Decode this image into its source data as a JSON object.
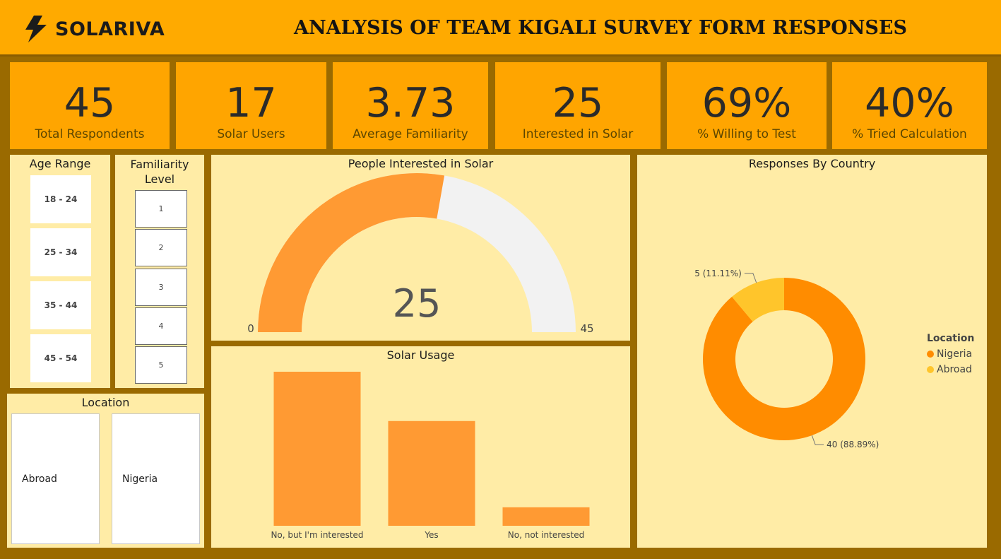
{
  "header": {
    "brand": "SOLARIVA",
    "title": "ANALYSIS OF TEAM KIGALI SURVEY FORM RESPONSES"
  },
  "kpis": [
    {
      "value": "45",
      "label": "Total Respondents"
    },
    {
      "value": "17",
      "label": "Solar Users"
    },
    {
      "value": "3.73",
      "label": "Average Familiarity"
    },
    {
      "value": "25",
      "label": "Interested in Solar"
    },
    {
      "value": "69%",
      "label": "% Willing to Test"
    },
    {
      "value": "40%",
      "label": "% Tried Calculation"
    }
  ],
  "age_slicer": {
    "title": "Age Range",
    "items": [
      "18 - 24",
      "25 - 34",
      "35 - 44",
      "45 - 54"
    ]
  },
  "familiarity_slicer": {
    "title": "Familiarity Level",
    "items": [
      "1",
      "2",
      "3",
      "4",
      "5"
    ]
  },
  "location_slicer": {
    "title": "Location",
    "items": [
      "Abroad",
      "Nigeria"
    ]
  },
  "gauge": {
    "title": "People Interested in Solar",
    "value": 25,
    "value_label": "25",
    "min": 0,
    "max": 45,
    "min_label": "0",
    "max_label": "45",
    "fill_color": "#ff9a33",
    "track_color": "#f2f2f2"
  },
  "chart_data": [
    {
      "type": "bar",
      "title": "Solar Usage",
      "categories": [
        "No, but I'm interested",
        "Yes",
        "No, not interested"
      ],
      "values": [
        25,
        17,
        3
      ],
      "color": "#ff9a33",
      "ylim": [
        0,
        25
      ]
    },
    {
      "type": "pie",
      "title": "Responses By Country",
      "donut": true,
      "categories": [
        "Nigeria",
        "Abroad"
      ],
      "values": [
        40,
        5
      ],
      "data_labels": [
        "40 (88.89%)",
        "5 (11.11%)"
      ],
      "colors": [
        "#ff8c00",
        "#ffc52b"
      ],
      "legend_title": "Location",
      "legend_placement": "right"
    }
  ]
}
